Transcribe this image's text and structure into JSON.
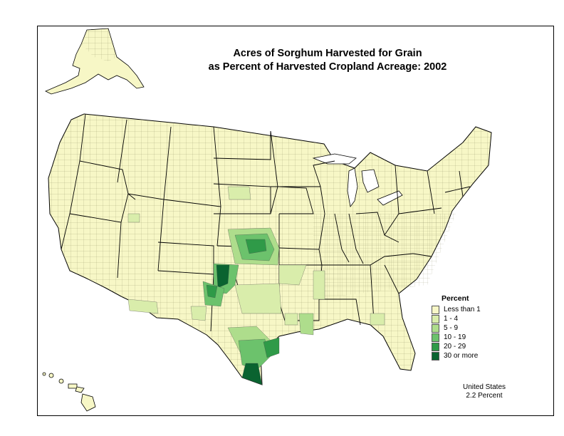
{
  "title": {
    "line1": "Acres of Sorghum Harvested for Grain",
    "line2": "as Percent of Harvested Cropland Acreage:  2002"
  },
  "legend": {
    "title": "Percent",
    "items": [
      {
        "label": "Less than 1",
        "color": "#f7f7c6"
      },
      {
        "label": "1 - 4",
        "color": "#d9edab"
      },
      {
        "label": "5 - 9",
        "color": "#aedd8c"
      },
      {
        "label": "10 - 19",
        "color": "#6cc26c"
      },
      {
        "label": "20 - 29",
        "color": "#2f9a48"
      },
      {
        "label": "30 or more",
        "color": "#0a6330"
      }
    ]
  },
  "summary": {
    "line1": "United States",
    "line2": "2.2 Percent"
  },
  "colors": {
    "base_fill": "#f7f7c6",
    "outline": "#000000"
  }
}
